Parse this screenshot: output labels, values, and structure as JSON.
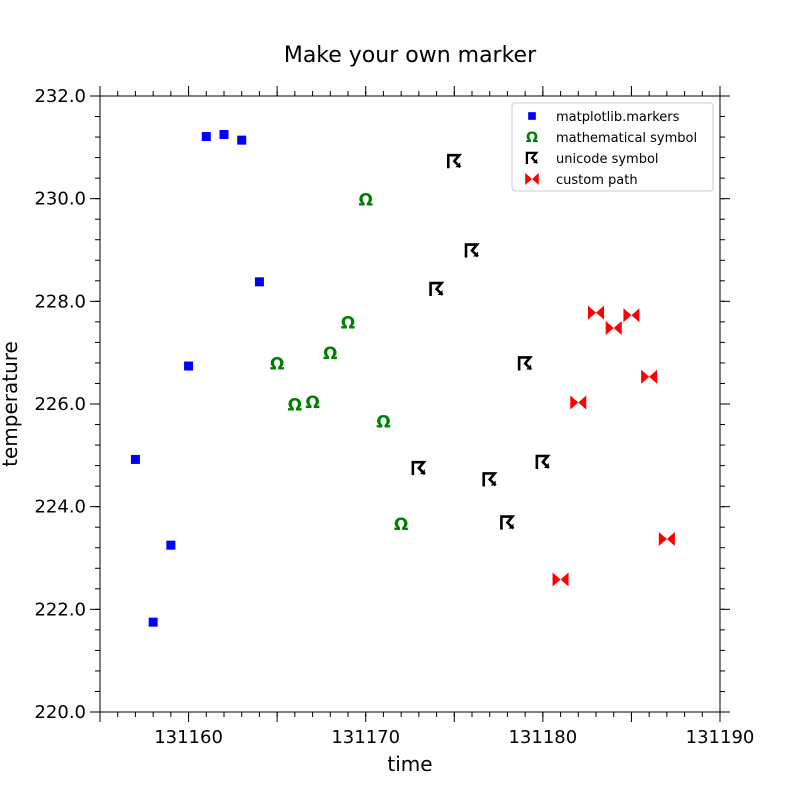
{
  "chart_data": {
    "type": "scatter",
    "title": "Make your own marker",
    "xlabel": "time",
    "ylabel": "temperature",
    "xlim": [
      131155,
      131190
    ],
    "ylim": [
      220.0,
      232.0
    ],
    "xticks": [
      131160,
      131170,
      131180,
      131190
    ],
    "yticks": [
      220.0,
      222.0,
      224.0,
      226.0,
      228.0,
      230.0,
      232.0
    ],
    "ytick_labels": [
      "220.0",
      "222.0",
      "224.0",
      "226.0",
      "228.0",
      "230.0",
      "232.0"
    ],
    "xminor_step": 1,
    "yminor_step": 0.4,
    "grid": false,
    "legend_position": "top-right",
    "series": [
      {
        "name": "matplotlib.markers",
        "marker": "square",
        "color": "#0000ff",
        "x": [
          131157,
          131158,
          131159,
          131160,
          131161,
          131162,
          131163,
          131164
        ],
        "y": [
          224.92,
          221.75,
          223.25,
          226.74,
          231.21,
          231.25,
          231.14,
          228.38
        ]
      },
      {
        "name": "mathematical symbol",
        "marker": "omega",
        "glyph": "Ω",
        "color": "#008000",
        "x": [
          131165,
          131166,
          131167,
          131168,
          131169,
          131170,
          131171,
          131172
        ],
        "y": [
          226.79,
          225.99,
          226.04,
          226.99,
          227.59,
          229.98,
          225.66,
          223.66
        ]
      },
      {
        "name": "unicode symbol",
        "marker": "unicode-arrow",
        "glyph": "☈",
        "color": "#000000",
        "x": [
          131173,
          131174,
          131175,
          131176,
          131177,
          131178,
          131179,
          131180
        ],
        "y": [
          224.75,
          228.24,
          230.73,
          228.99,
          224.53,
          223.69,
          226.79,
          224.87
        ]
      },
      {
        "name": "custom path",
        "marker": "bowtie",
        "color": "#ff0000",
        "x": [
          131181,
          131182,
          131183,
          131184,
          131185,
          131186,
          131187
        ],
        "y": [
          222.58,
          226.03,
          227.78,
          227.48,
          227.73,
          226.53,
          223.37
        ]
      }
    ]
  }
}
